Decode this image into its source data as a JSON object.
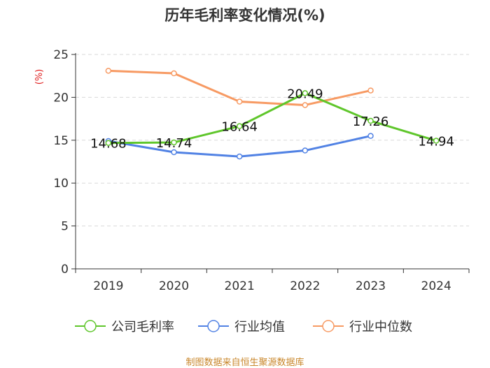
{
  "chart_data": {
    "type": "line",
    "title": "历年毛利率变化情况(%)",
    "ylabel": "(%)",
    "xlabel": "",
    "ylim": [
      0,
      25
    ],
    "yticks": [
      0,
      5,
      10,
      15,
      20,
      25
    ],
    "grid": "horizontal dashed",
    "legend_position": "bottom",
    "categories": [
      "2019",
      "2020",
      "2021",
      "2022",
      "2023",
      "2024"
    ],
    "series": [
      {
        "name": "公司毛利率",
        "color": "#5fc62b",
        "values": [
          14.68,
          14.74,
          16.64,
          20.49,
          17.26,
          14.94
        ],
        "labels": [
          "14.68",
          "14.74",
          "16.64",
          "20.49",
          "17.26",
          "14.94"
        ]
      },
      {
        "name": "行业均值",
        "color": "#5182e4",
        "values": [
          14.9,
          13.6,
          13.1,
          13.8,
          15.5,
          null
        ]
      },
      {
        "name": "行业中位数",
        "color": "#f79a63",
        "values": [
          23.1,
          22.8,
          19.5,
          19.1,
          20.8,
          null
        ]
      }
    ]
  },
  "source_note": "制图数据来自恒生聚源数据库"
}
